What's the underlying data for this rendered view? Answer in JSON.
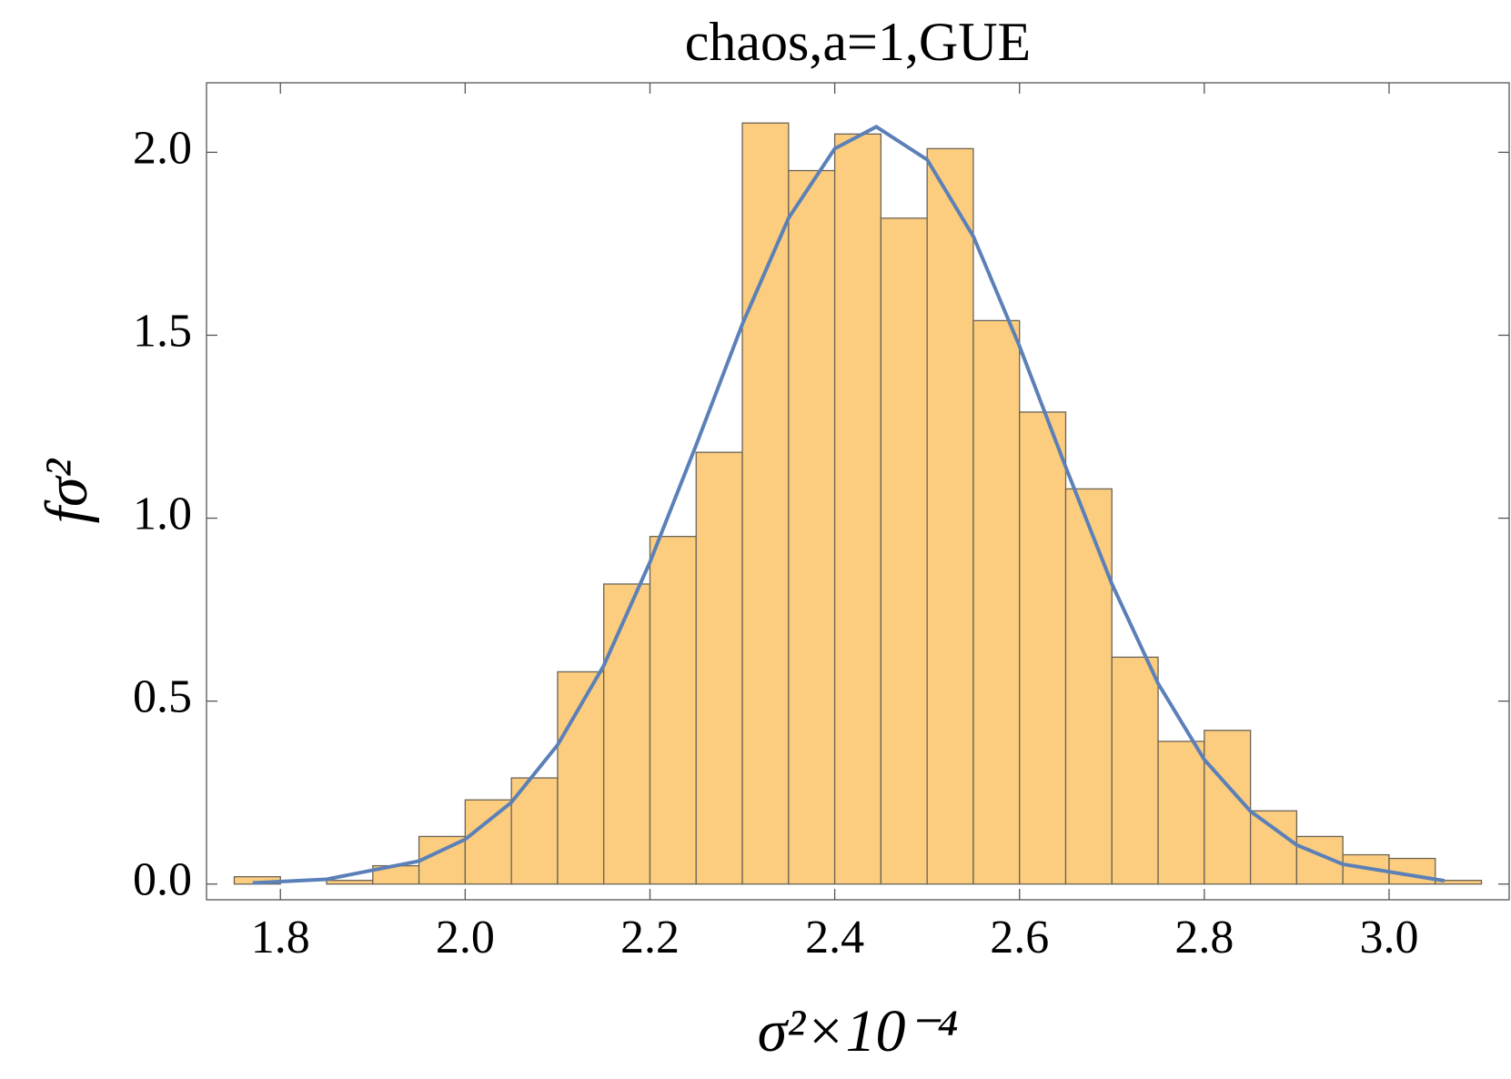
{
  "chart_data": {
    "type": "histogram",
    "title": "chaos,a=1,GUE",
    "x_label": "σ²×10⁻⁴",
    "y_label": "fσ²",
    "bins": [
      1.75,
      1.8,
      1.85,
      1.9,
      1.95,
      2.0,
      2.05,
      2.1,
      2.15,
      2.2,
      2.25,
      2.3,
      2.35,
      2.4,
      2.45,
      2.5,
      2.55,
      2.6,
      2.65,
      2.7,
      2.75,
      2.8,
      2.85,
      2.9,
      2.95,
      3.0,
      3.05,
      3.1
    ],
    "values": [
      0.02,
      0,
      0.01,
      0.05,
      0.13,
      0.23,
      0.29,
      0.58,
      0.82,
      0.95,
      1.18,
      2.08,
      1.95,
      2.05,
      1.82,
      2.01,
      1.54,
      1.29,
      1.08,
      0.62,
      0.39,
      0.42,
      0.2,
      0.13,
      0.08,
      0.07,
      0.01
    ],
    "color": "#fccd7e",
    "curve": {
      "color": "#5b80b8",
      "x": [
        1.77,
        1.85,
        1.95,
        2.0,
        2.05,
        2.1,
        2.15,
        2.2,
        2.25,
        2.3,
        2.35,
        2.4,
        2.445,
        2.5,
        2.55,
        2.6,
        2.65,
        2.7,
        2.75,
        2.8,
        2.85,
        2.9,
        2.95,
        3.06
      ],
      "y": [
        0.003,
        0.013,
        0.063,
        0.122,
        0.223,
        0.38,
        0.597,
        0.88,
        1.2,
        1.53,
        1.82,
        2.01,
        2.07,
        1.98,
        1.77,
        1.47,
        1.14,
        0.82,
        0.548,
        0.34,
        0.199,
        0.107,
        0.054,
        0.009
      ]
    },
    "xlim": [
      1.72,
      3.13
    ],
    "ylim": [
      -0.043,
      2.19
    ],
    "xticks": [
      1.8,
      {
        "value": 2.0,
        "label": "2.0"
      },
      2.2,
      2.4,
      2.6,
      2.8,
      {
        "value": 3.0,
        "label": "3.0"
      }
    ],
    "yticks": [
      {
        "value": 0,
        "label": "0.0"
      },
      0.5,
      {
        "value": 1,
        "label": "1.0"
      },
      1.5,
      {
        "value": 2,
        "label": "2.0"
      }
    ]
  }
}
